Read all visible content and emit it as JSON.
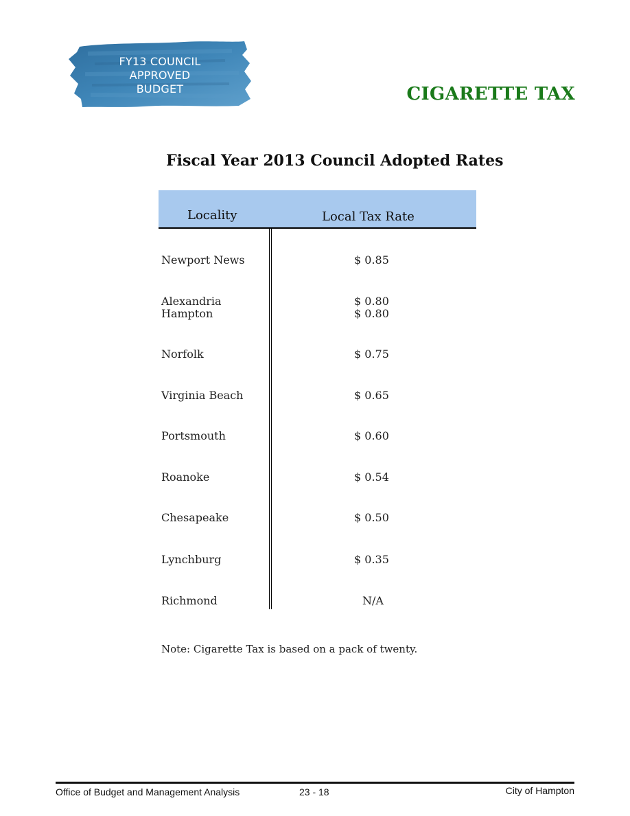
{
  "badge": {
    "line1": "FY13 COUNCIL",
    "line2": "APPROVED",
    "line3": "BUDGET",
    "color": "#3f86b8"
  },
  "page_title": "CIGARETTE TAX",
  "table": {
    "title": "Fiscal Year 2013 Council Adopted Rates",
    "headers": [
      "Locality",
      "Local Tax Rate"
    ],
    "rows": [
      {
        "locality": "Newport News",
        "rate": "$ 0.85"
      },
      {
        "locality": "Alexandria",
        "rate": "$ 0.80"
      },
      {
        "locality": "Hampton",
        "rate": "$ 0.80"
      },
      {
        "locality": "Norfolk",
        "rate": "$ 0.75"
      },
      {
        "locality": "Virginia Beach",
        "rate": "$ 0.65"
      },
      {
        "locality": "Portsmouth",
        "rate": "$ 0.60"
      },
      {
        "locality": "Roanoke",
        "rate": "$ 0.54"
      },
      {
        "locality": "Chesapeake",
        "rate": "$ 0.50"
      },
      {
        "locality": "Lynchburg",
        "rate": "$ 0.35"
      },
      {
        "locality": "Richmond",
        "rate": "N/A"
      }
    ],
    "header_color": "#a8c9ee"
  },
  "note": "Note:  Cigarette Tax is based on a pack of twenty.",
  "footer": {
    "left": "Office of Budget and Management Analysis",
    "page": "23 - 18",
    "right": "City of Hampton"
  },
  "colors": {
    "title_green": "#1a7a1a"
  }
}
